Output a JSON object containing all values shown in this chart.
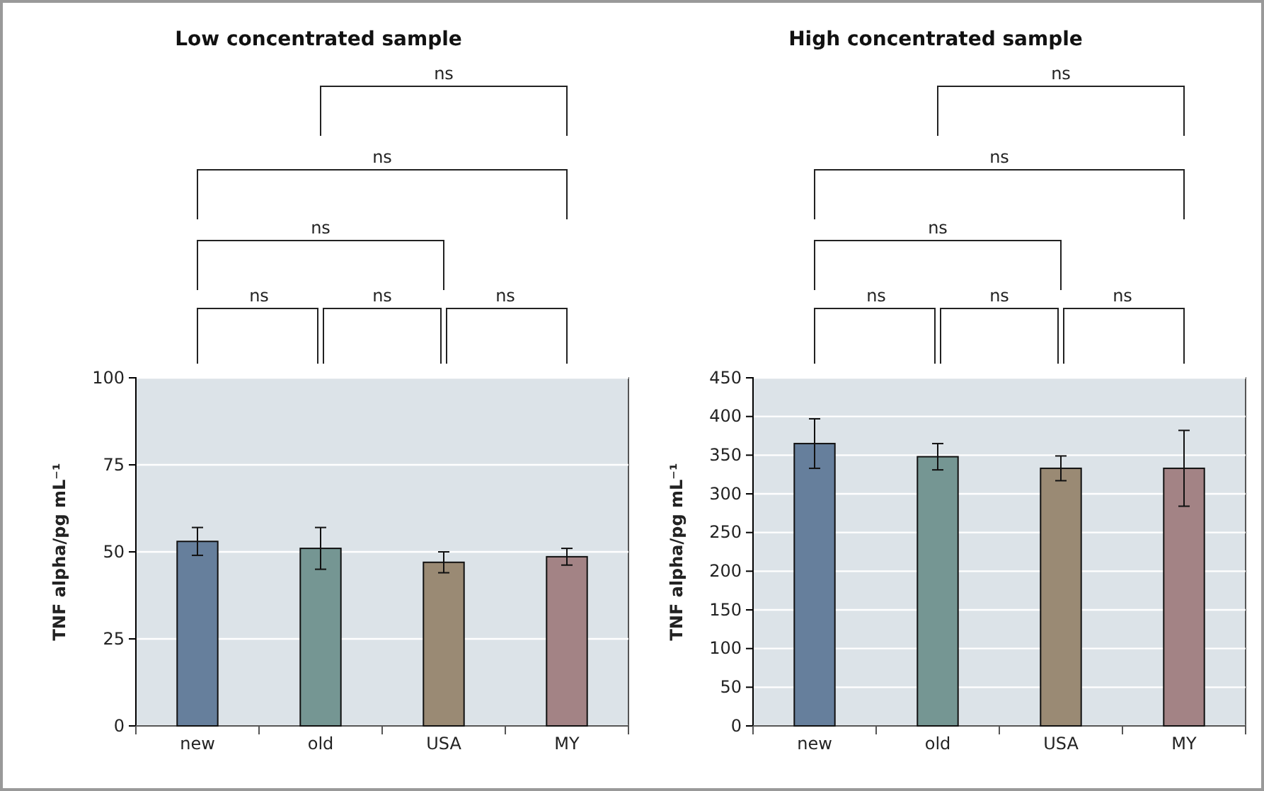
{
  "chart_data": [
    {
      "type": "bar",
      "title": "Low concentrated sample",
      "ylabel": "TNF alpha/pg mL⁻¹",
      "categories": [
        "new",
        "old",
        "USA",
        "MY"
      ],
      "values": [
        53,
        51,
        47,
        48.6
      ],
      "errors": [
        4,
        6,
        3,
        2.4
      ],
      "colors": [
        "#667f9c",
        "#759693",
        "#9a8a74",
        "#a38385"
      ],
      "ylim": [
        0,
        100
      ],
      "yticks": [
        0,
        25,
        50,
        75,
        100
      ],
      "grid": "y",
      "annotations": [
        "ns",
        "ns",
        "ns",
        "ns",
        "ns",
        "ns"
      ]
    },
    {
      "type": "bar",
      "title": "High concentrated sample",
      "ylabel": "TNF alpha/pg mL⁻¹",
      "categories": [
        "new",
        "old",
        "USA",
        "MY"
      ],
      "values": [
        365,
        348,
        333,
        333
      ],
      "errors": [
        32,
        17,
        16,
        49
      ],
      "colors": [
        "#667f9c",
        "#759693",
        "#9a8a74",
        "#a38385"
      ],
      "ylim": [
        0,
        450
      ],
      "yticks": [
        0,
        50,
        100,
        150,
        200,
        250,
        300,
        350,
        400,
        450
      ],
      "grid": "y",
      "annotations": [
        "ns",
        "ns",
        "ns",
        "ns",
        "ns",
        "ns"
      ]
    }
  ]
}
